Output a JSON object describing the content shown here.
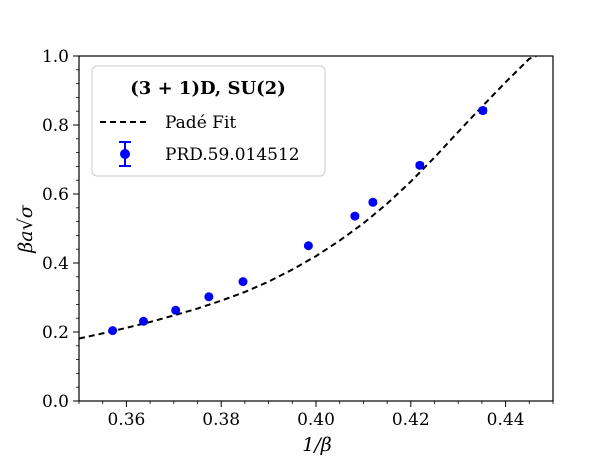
{
  "chart_data": {
    "type": "scatter",
    "xlabel": "1/β",
    "ylabel": "βa√σ",
    "xlim": [
      0.35,
      0.45
    ],
    "ylim": [
      0.0,
      1.0
    ],
    "xticks": [
      0.36,
      0.38,
      0.4,
      0.42,
      0.44
    ],
    "yticks": [
      0.0,
      0.2,
      0.4,
      0.6,
      0.8,
      1.0
    ],
    "xtick_labels": [
      "0.36",
      "0.38",
      "0.40",
      "0.42",
      "0.44"
    ],
    "ytick_labels": [
      "0.0",
      "0.2",
      "0.4",
      "0.6",
      "0.8",
      "1.0"
    ],
    "grid": false,
    "legend": {
      "placement": "top-left",
      "title": "(3 + 1)D, SU(2)",
      "entries": [
        "Padé Fit",
        "PRD.59.014512"
      ]
    },
    "series": [
      {
        "name": "Padé Fit",
        "kind": "line",
        "style": "dashed",
        "color": "#000000",
        "x": [
          0.35,
          0.355,
          0.36,
          0.365,
          0.37,
          0.375,
          0.38,
          0.385,
          0.39,
          0.395,
          0.4,
          0.405,
          0.41,
          0.415,
          0.42,
          0.425,
          0.43,
          0.435,
          0.44,
          0.445,
          0.4465
        ],
        "y": [
          0.181,
          0.196,
          0.212,
          0.229,
          0.248,
          0.268,
          0.291,
          0.316,
          0.346,
          0.381,
          0.42,
          0.465,
          0.515,
          0.572,
          0.636,
          0.706,
          0.78,
          0.853,
          0.924,
          0.992,
          1.0
        ]
      },
      {
        "name": "PRD.59.014512",
        "kind": "errorbar",
        "color": "#0000ff",
        "x": [
          0.3571,
          0.3636,
          0.3704,
          0.3774,
          0.3846,
          0.3984,
          0.4082,
          0.412,
          0.4219,
          0.4352
        ],
        "y": [
          0.204,
          0.231,
          0.263,
          0.302,
          0.346,
          0.45,
          0.536,
          0.576,
          0.683,
          0.842
        ],
        "yerr": [
          0.003,
          0.003,
          0.003,
          0.003,
          0.004,
          0.004,
          0.005,
          0.005,
          0.006,
          0.007
        ]
      }
    ]
  }
}
